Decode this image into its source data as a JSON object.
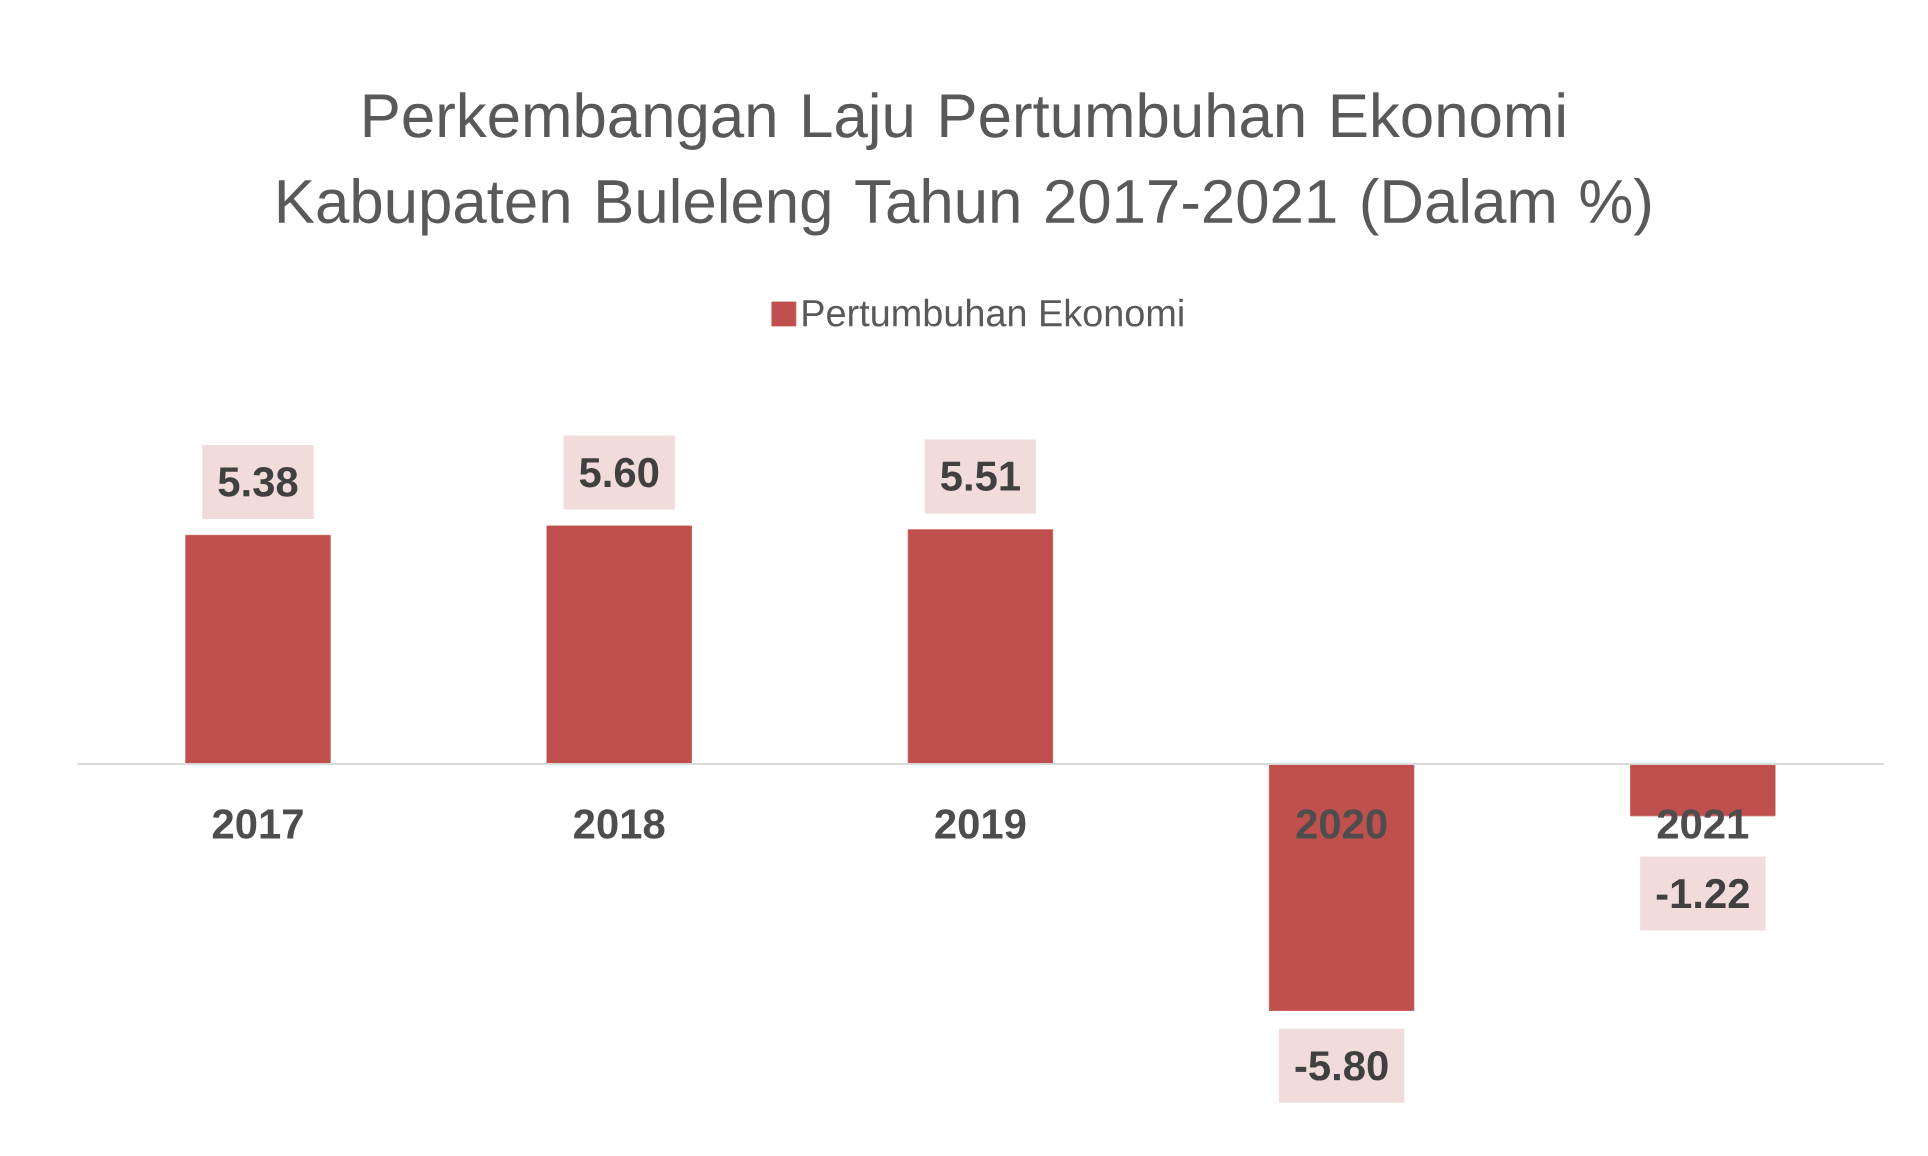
{
  "chart_data": {
    "type": "bar",
    "title": "Perkembangan Laju Pertumbuhan Ekonomi Kabupaten Buleleng Tahun 2017-2021 (Dalam %)",
    "categories": [
      "2017",
      "2018",
      "2019",
      "2020",
      "2021"
    ],
    "series": [
      {
        "name": "Pertumbuhan Ekonomi",
        "color": "#c0504d",
        "values": [
          5.38,
          5.6,
          5.51,
          -5.8,
          -1.22
        ],
        "value_labels": [
          "5.38",
          "5.60",
          "5.51",
          "-5.80",
          "-1.22"
        ]
      }
    ],
    "legend": "top",
    "tick_labels": "x"
  }
}
